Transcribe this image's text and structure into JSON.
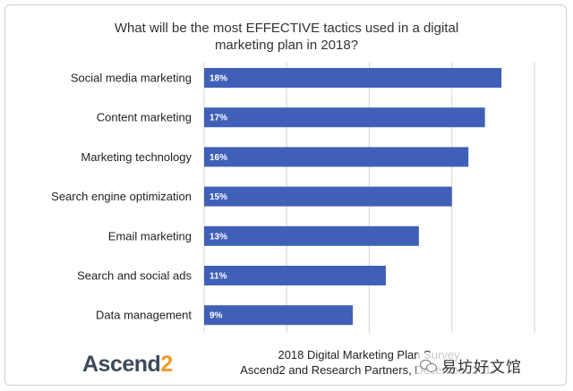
{
  "chart_data": {
    "type": "bar",
    "orientation": "horizontal",
    "title": "What will be the most EFFECTIVE  tactics used in a digital marketing plan in 2018?",
    "categories": [
      "Social media marketing",
      "Content marketing",
      "Marketing technology",
      "Search engine optimization",
      "Email marketing",
      "Search and social ads",
      "Data management"
    ],
    "values": [
      18,
      17,
      16,
      15,
      13,
      11,
      9
    ],
    "value_labels": [
      "18%",
      "17%",
      "16%",
      "15%",
      "13%",
      "11%",
      "9%"
    ],
    "xlim": [
      0,
      20
    ],
    "grid": "vertical",
    "bar_color": "#4060b8"
  },
  "footer": {
    "logo_text": "Ascend",
    "logo_num": "2",
    "source_line1": "2018 Digital Marketing Plan Survey",
    "source_line2": "Ascend2 and Research Partners, December 2017"
  },
  "watermark": {
    "text": "易坊好文馆",
    "icon": "wechat-icon"
  }
}
